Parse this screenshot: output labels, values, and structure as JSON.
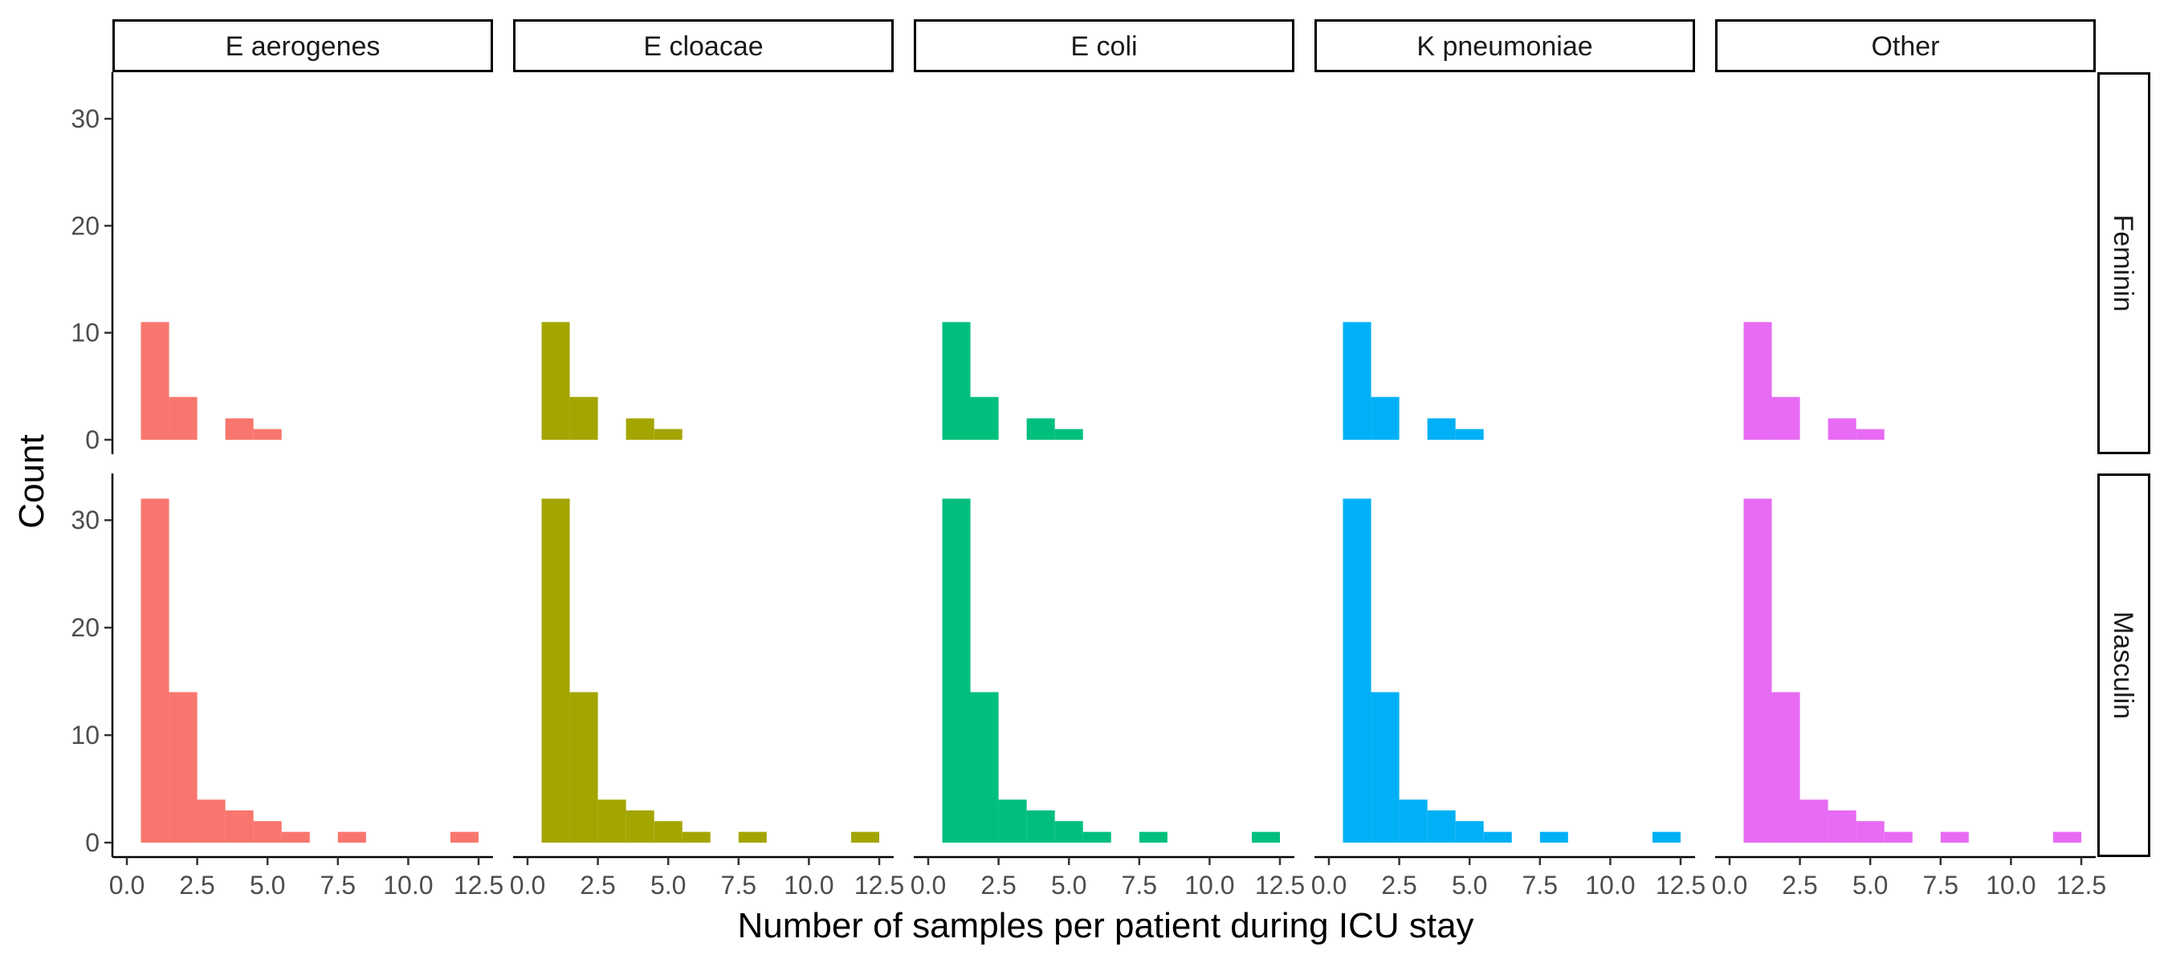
{
  "chart_data": {
    "type": "histogram",
    "xlabel": "Number of samples per patient during ICU stay",
    "ylabel": "Count",
    "xlim": [
      0,
      12.5
    ],
    "ylim": [
      0,
      33
    ],
    "x_ticks": [
      0,
      2.5,
      5,
      7.5,
      10,
      12.5
    ],
    "x_tick_labels": [
      "0.0",
      "2.5",
      "5.0",
      "7.5",
      "10.0",
      "12.5"
    ],
    "y_ticks": [
      0,
      10,
      20,
      30
    ],
    "y_tick_labels": [
      "0",
      "10",
      "20",
      "30"
    ],
    "columns": [
      {
        "label": "E aerogenes",
        "color": "#F8766D"
      },
      {
        "label": "E cloacae",
        "color": "#A3A500"
      },
      {
        "label": "E coli",
        "color": "#00BF7D"
      },
      {
        "label": "K pneumoniae",
        "color": "#00B0F6"
      },
      {
        "label": "Other",
        "color": "#E76BF3"
      }
    ],
    "rows": [
      {
        "label": "Feminin",
        "bins": [
          {
            "x0": 0.5,
            "x1": 1.5,
            "count": 11
          },
          {
            "x0": 1.5,
            "x1": 2.5,
            "count": 4
          },
          {
            "x0": 3.5,
            "x1": 4.5,
            "count": 2
          },
          {
            "x0": 4.5,
            "x1": 5.5,
            "count": 1
          }
        ]
      },
      {
        "label": "Masculin",
        "bins": [
          {
            "x0": 0.5,
            "x1": 1.5,
            "count": 32
          },
          {
            "x0": 1.5,
            "x1": 2.5,
            "count": 14
          },
          {
            "x0": 2.5,
            "x1": 3.5,
            "count": 4
          },
          {
            "x0": 3.5,
            "x1": 4.5,
            "count": 3
          },
          {
            "x0": 4.5,
            "x1": 5.5,
            "count": 2
          },
          {
            "x0": 5.5,
            "x1": 6.5,
            "count": 1
          },
          {
            "x0": 7.5,
            "x1": 8.5,
            "count": 1
          },
          {
            "x0": 11.5,
            "x1": 12.5,
            "count": 1
          }
        ]
      }
    ]
  }
}
